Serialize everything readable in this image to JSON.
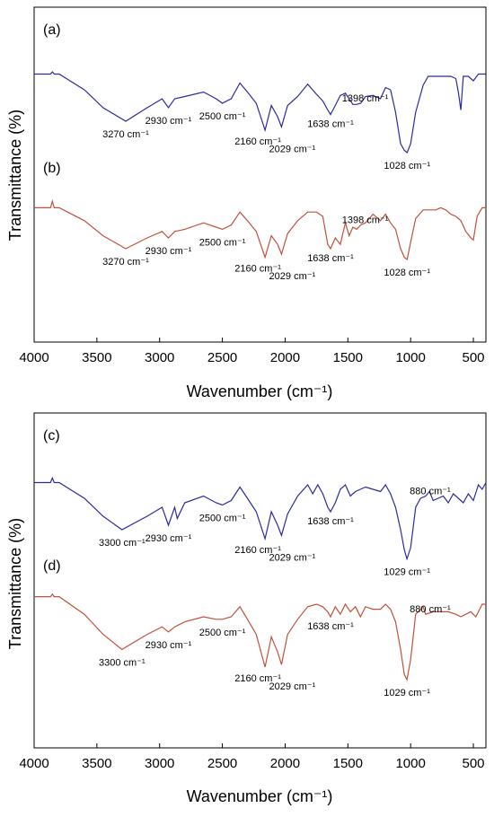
{
  "chart_data": [
    {
      "type": "line",
      "xlabel": "Wavenumber (cm⁻¹)",
      "ylabel": "Transmittance (%)",
      "xlim": [
        4000,
        400
      ],
      "xticks": [
        "4000",
        "3500",
        "3000",
        "2500",
        "2000",
        "1500",
        "1000",
        "500"
      ],
      "xtick_values": [
        4000,
        3500,
        3000,
        2500,
        2000,
        1500,
        1000,
        500
      ],
      "grid": false,
      "series": [
        {
          "name": "",
          "color": "#2b2b9e",
          "x": [
            4000,
            3870,
            3855,
            3840,
            3800,
            3600,
            3450,
            3270,
            3100,
            2980,
            2930,
            2880,
            2800,
            2650,
            2550,
            2500,
            2430,
            2360,
            2300,
            2230,
            2160,
            2110,
            2060,
            2029,
            1980,
            1900,
            1820,
            1750,
            1700,
            1660,
            1638,
            1600,
            1560,
            1520,
            1460,
            1430,
            1398,
            1360,
            1300,
            1240,
            1200,
            1160,
            1120,
            1080,
            1050,
            1028,
            1000,
            960,
            900,
            860,
            800,
            760,
            720,
            680,
            640,
            620,
            600,
            580,
            540,
            500,
            460,
            430,
            400
          ],
          "y": [
            82,
            82,
            84,
            82,
            82,
            68,
            52,
            40,
            52,
            60,
            52,
            60,
            62,
            66,
            60,
            56,
            60,
            74,
            66,
            56,
            32,
            54,
            44,
            35,
            54,
            62,
            73,
            64,
            58,
            50,
            46,
            54,
            63,
            65,
            55,
            55,
            56,
            62,
            63,
            60,
            70,
            68,
            48,
            20,
            14,
            12,
            20,
            48,
            72,
            80,
            80,
            80,
            80,
            80,
            78,
            66,
            50,
            80,
            80,
            76,
            82,
            82,
            82
          ],
          "labels": [
            {
              "text": "3270 cm⁻¹",
              "x": 3270
            },
            {
              "text": "2930 cm⁻¹",
              "x": 2930
            },
            {
              "text": "2500 cm⁻¹",
              "x": 2500
            },
            {
              "text": "2160 cm⁻¹",
              "x": 2160
            },
            {
              "text": "2029 cm⁻¹",
              "x": 2029
            },
            {
              "text": "1638 cm⁻¹",
              "x": 1638
            },
            {
              "text": "1398 cm⁻¹",
              "x": 1398
            },
            {
              "text": "1028 cm⁻¹",
              "x": 1028
            }
          ]
        },
        {
          "name": "",
          "color": "#c0523c",
          "x": [
            4000,
            3870,
            3855,
            3840,
            3800,
            3600,
            3450,
            3270,
            3100,
            2980,
            2930,
            2880,
            2800,
            2650,
            2550,
            2500,
            2430,
            2360,
            2300,
            2230,
            2160,
            2110,
            2060,
            2029,
            1980,
            1900,
            1820,
            1750,
            1700,
            1660,
            1638,
            1600,
            1560,
            1520,
            1490,
            1460,
            1430,
            1398,
            1360,
            1300,
            1240,
            1200,
            1160,
            1120,
            1080,
            1050,
            1028,
            1000,
            960,
            900,
            860,
            800,
            760,
            720,
            680,
            640,
            600,
            560,
            520,
            500,
            470,
            430,
            400
          ],
          "y": [
            78,
            78,
            84,
            78,
            78,
            66,
            52,
            40,
            50,
            56,
            50,
            56,
            58,
            64,
            60,
            58,
            62,
            74,
            66,
            56,
            32,
            52,
            44,
            35,
            54,
            66,
            74,
            74,
            70,
            44,
            40,
            50,
            44,
            64,
            52,
            60,
            58,
            62,
            64,
            72,
            66,
            72,
            64,
            58,
            40,
            32,
            30,
            46,
            68,
            76,
            76,
            76,
            78,
            76,
            72,
            70,
            66,
            56,
            50,
            48,
            70,
            78,
            78
          ],
          "labels": [
            {
              "text": "3270 cm⁻¹",
              "x": 3270
            },
            {
              "text": "2930 cm⁻¹",
              "x": 2930
            },
            {
              "text": "2500 cm⁻¹",
              "x": 2500
            },
            {
              "text": "2160 cm⁻¹",
              "x": 2160
            },
            {
              "text": "2029 cm⁻¹",
              "x": 2029
            },
            {
              "text": "1638 cm⁻¹",
              "x": 1638
            },
            {
              "text": "1398 cm⁻¹",
              "x": 1398
            },
            {
              "text": "1028 cm⁻¹",
              "x": 1028
            }
          ]
        }
      ],
      "panel_labels": [
        "(a)",
        "(b)"
      ]
    },
    {
      "type": "line",
      "xlabel": "Wavenumber (cm⁻¹)",
      "ylabel": "Transmittance (%)",
      "xlim": [
        4000,
        400
      ],
      "xticks": [
        "4000",
        "3500",
        "3000",
        "2500",
        "2000",
        "1500",
        "1000",
        "500"
      ],
      "xtick_values": [
        4000,
        3500,
        3000,
        2500,
        2000,
        1500,
        1000,
        500
      ],
      "grid": false,
      "series": [
        {
          "name": "",
          "color": "#2b2b9e",
          "x": [
            4000,
            3870,
            3855,
            3840,
            3800,
            3600,
            3450,
            3300,
            3100,
            2980,
            2930,
            2880,
            2860,
            2800,
            2650,
            2550,
            2500,
            2430,
            2360,
            2300,
            2230,
            2160,
            2110,
            2060,
            2029,
            1980,
            1900,
            1820,
            1780,
            1740,
            1700,
            1660,
            1638,
            1600,
            1560,
            1520,
            1480,
            1440,
            1400,
            1360,
            1300,
            1240,
            1200,
            1160,
            1120,
            1080,
            1050,
            1029,
            1000,
            960,
            920,
            880,
            850,
            820,
            780,
            740,
            700,
            660,
            620,
            580,
            540,
            500,
            460,
            430,
            400
          ],
          "y": [
            82,
            82,
            86,
            82,
            82,
            68,
            52,
            40,
            52,
            60,
            44,
            60,
            50,
            64,
            70,
            64,
            62,
            66,
            78,
            68,
            56,
            32,
            56,
            44,
            35,
            54,
            70,
            80,
            72,
            80,
            72,
            60,
            56,
            64,
            76,
            80,
            70,
            74,
            76,
            78,
            76,
            74,
            80,
            72,
            60,
            40,
            22,
            14,
            24,
            60,
            68,
            70,
            74,
            66,
            68,
            70,
            64,
            72,
            68,
            64,
            72,
            66,
            80,
            76,
            82
          ]
        },
        {
          "name": "",
          "color": "#c0523c",
          "x": [
            4000,
            3870,
            3855,
            3840,
            3800,
            3600,
            3450,
            3300,
            3100,
            2980,
            2930,
            2880,
            2800,
            2650,
            2550,
            2500,
            2430,
            2360,
            2300,
            2230,
            2160,
            2110,
            2060,
            2029,
            1980,
            1900,
            1820,
            1750,
            1700,
            1660,
            1638,
            1600,
            1560,
            1520,
            1480,
            1440,
            1400,
            1360,
            1300,
            1240,
            1200,
            1160,
            1120,
            1080,
            1050,
            1029,
            1000,
            960,
            900,
            880,
            820,
            760,
            700,
            640,
            600,
            560,
            520,
            480,
            430,
            400
          ],
          "y": [
            86,
            86,
            88,
            86,
            86,
            72,
            56,
            44,
            56,
            62,
            58,
            62,
            66,
            70,
            68,
            68,
            70,
            78,
            68,
            56,
            30,
            54,
            42,
            32,
            56,
            68,
            78,
            80,
            78,
            74,
            70,
            78,
            72,
            80,
            74,
            78,
            70,
            78,
            76,
            76,
            80,
            76,
            66,
            44,
            24,
            20,
            36,
            72,
            78,
            72,
            74,
            74,
            74,
            72,
            70,
            72,
            74,
            70,
            80,
            80
          ]
        }
      ],
      "annotations_c": [
        {
          "text": "3300 cm⁻¹",
          "x": 3300
        },
        {
          "text": "2930 cm⁻¹",
          "x": 2930
        },
        {
          "text": "2500 cm⁻¹",
          "x": 2500
        },
        {
          "text": "2160 cm⁻¹",
          "x": 2160
        },
        {
          "text": "2029 cm⁻¹",
          "x": 2029
        },
        {
          "text": "1638 cm⁻¹",
          "x": 1638
        },
        {
          "text": "1029 cm⁻¹",
          "x": 1029
        },
        {
          "text": "880 cm⁻¹",
          "x": 880
        }
      ],
      "annotations_d": [
        {
          "text": "3300 cm⁻¹",
          "x": 3300
        },
        {
          "text": "2930 cm⁻¹",
          "x": 2930
        },
        {
          "text": "2500 cm⁻¹",
          "x": 2500
        },
        {
          "text": "2160 cm⁻¹",
          "x": 2160
        },
        {
          "text": "2029 cm⁻¹",
          "x": 2029
        },
        {
          "text": "1638 cm⁻¹",
          "x": 1638
        },
        {
          "text": "1029 cm⁻¹",
          "x": 1029
        },
        {
          "text": "880 cm⁻¹",
          "x": 880
        }
      ],
      "panel_labels": [
        "(c)",
        "(d)"
      ]
    }
  ]
}
